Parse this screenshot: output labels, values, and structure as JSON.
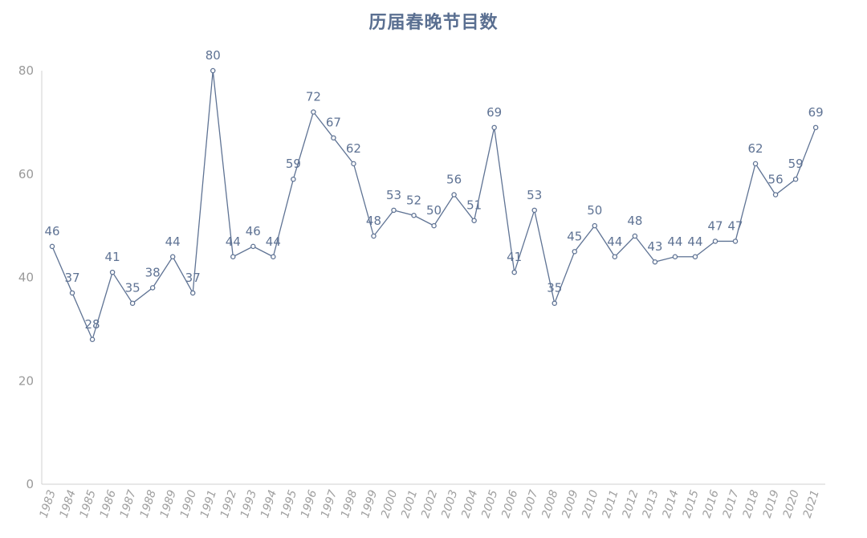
{
  "chart_data": {
    "type": "line",
    "title": "历届春晚节目数",
    "xlabel": "",
    "ylabel": "",
    "ylim": [
      0,
      80
    ],
    "yticks": [
      0,
      20,
      40,
      60,
      80
    ],
    "grid": false,
    "legend": "none",
    "colors": {
      "line": "#5f7394",
      "title": "#5a6f91",
      "tick": "#9a9a9a"
    },
    "categories": [
      "1983",
      "1984",
      "1985",
      "1986",
      "1987",
      "1988",
      "1989",
      "1990",
      "1991",
      "1992",
      "1993",
      "1994",
      "1995",
      "1996",
      "1997",
      "1998",
      "1999",
      "2000",
      "2001",
      "2002",
      "2003",
      "2004",
      "2005",
      "2006",
      "2007",
      "2008",
      "2009",
      "2010",
      "2011",
      "2012",
      "2013",
      "2014",
      "2015",
      "2016",
      "2017",
      "2018",
      "2019",
      "2020",
      "2021"
    ],
    "values": [
      46,
      37,
      28,
      41,
      35,
      38,
      44,
      37,
      80,
      44,
      46,
      44,
      59,
      72,
      67,
      62,
      48,
      53,
      52,
      50,
      56,
      51,
      69,
      41,
      53,
      35,
      45,
      50,
      44,
      48,
      43,
      44,
      44,
      47,
      47,
      62,
      56,
      59,
      69
    ]
  }
}
